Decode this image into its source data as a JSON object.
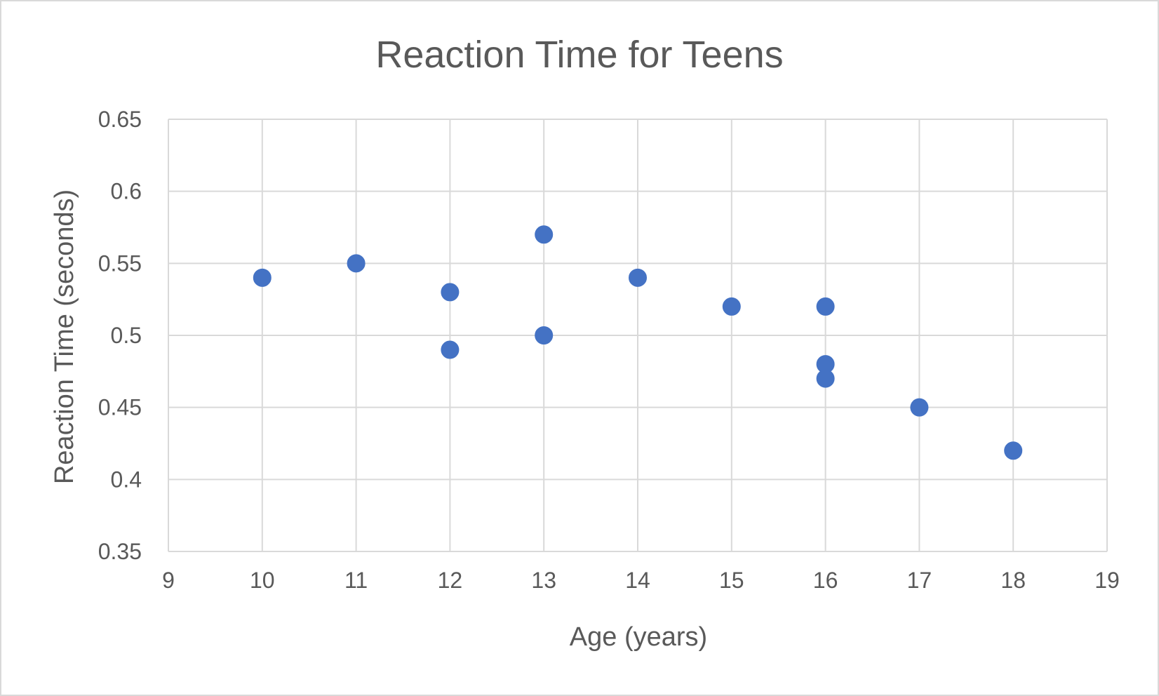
{
  "chart_data": {
    "type": "scatter",
    "title": "Reaction Time for Teens",
    "xlabel": "Age (years)",
    "ylabel": "Reaction Time (seconds)",
    "xlim": [
      9,
      19
    ],
    "ylim": [
      0.35,
      0.65
    ],
    "x_ticks": [
      "9",
      "10",
      "11",
      "12",
      "13",
      "14",
      "15",
      "16",
      "17",
      "18",
      "19"
    ],
    "y_ticks": [
      "0.35",
      "0.4",
      "0.45",
      "0.5",
      "0.55",
      "0.6",
      "0.65"
    ],
    "grid": true,
    "legend": "none",
    "series": [
      {
        "color": "#4472c4",
        "points": [
          {
            "x": 10,
            "y": 0.54
          },
          {
            "x": 11,
            "y": 0.55
          },
          {
            "x": 12,
            "y": 0.53
          },
          {
            "x": 12,
            "y": 0.49
          },
          {
            "x": 13,
            "y": 0.57
          },
          {
            "x": 13,
            "y": 0.5
          },
          {
            "x": 14,
            "y": 0.54
          },
          {
            "x": 15,
            "y": 0.52
          },
          {
            "x": 16,
            "y": 0.52
          },
          {
            "x": 16,
            "y": 0.48
          },
          {
            "x": 16,
            "y": 0.47
          },
          {
            "x": 17,
            "y": 0.45
          },
          {
            "x": 18,
            "y": 0.42
          }
        ]
      }
    ]
  }
}
